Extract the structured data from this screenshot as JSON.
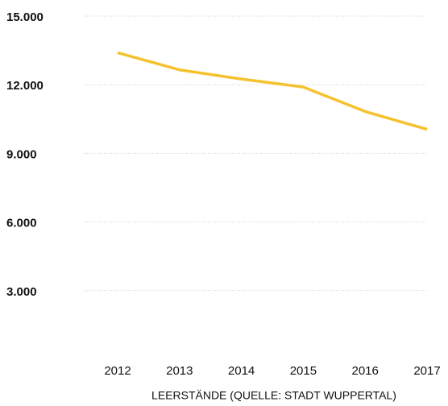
{
  "chart_data": {
    "type": "line",
    "xlabel": "LEERSTÄNDE (QUELLE: STADT WUPPERTAL)",
    "categories": [
      "2012",
      "2013",
      "2014",
      "2015",
      "2016",
      "2017"
    ],
    "series": [
      {
        "name": "Leerstände",
        "color": "#f5c22f",
        "values": [
          13400,
          12650,
          12250,
          11900,
          10830,
          10050
        ]
      }
    ],
    "ylim": [
      0,
      15000
    ],
    "yticks": [
      {
        "value": 3000,
        "label": "3.000"
      },
      {
        "value": 6000,
        "label": "6.000"
      },
      {
        "value": 9000,
        "label": "9.000"
      },
      {
        "value": 12000,
        "label": "12.000"
      },
      {
        "value": 15000,
        "label": "15.000"
      }
    ],
    "grid": true
  }
}
